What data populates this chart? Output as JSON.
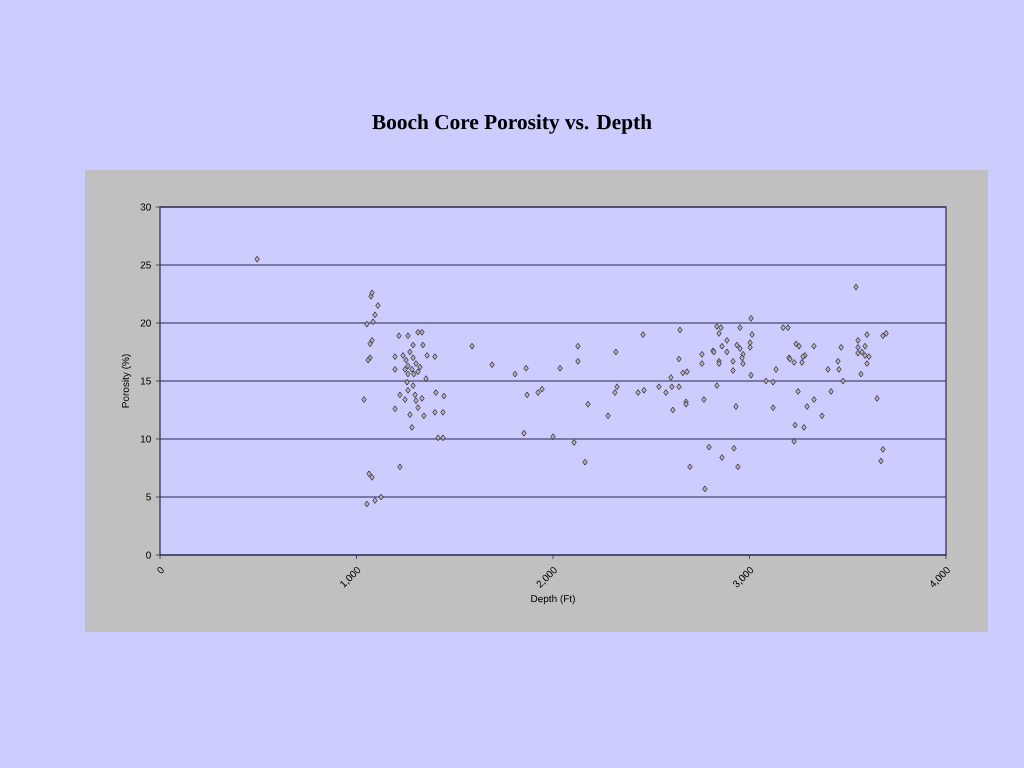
{
  "chart_data": {
    "type": "scatter",
    "title": "Booch Core Porosity vs. Depth",
    "xlabel": "Depth (Ft)",
    "ylabel": "Porosity (%)",
    "xlim": [
      0,
      4000
    ],
    "ylim": [
      0,
      30
    ],
    "xticks": [
      0,
      {
        "value": 1000,
        "label": "1,000"
      },
      {
        "value": 2000,
        "label": "2,000"
      },
      {
        "value": 3000,
        "label": "3,000"
      },
      {
        "value": 4000,
        "label": "4,000"
      }
    ],
    "yticks": [
      0,
      5,
      10,
      15,
      20,
      25,
      30
    ],
    "grid": "y",
    "marker": "diamond",
    "series": [
      {
        "color": "#b8b09a",
        "x": [
          494,
          1038,
          1053,
          1069,
          1079,
          1069,
          1059,
          1074,
          1079,
          1084,
          1094,
          1109,
          1064,
          1079,
          1053,
          1094,
          1125,
          1313,
          1333,
          1216,
          1262,
          1338,
          1288,
          1359,
          1399,
          1196,
          1196,
          1354,
          1404,
          1445,
          1333,
          1196,
          1272,
          1343,
          1399,
          1440,
          1282,
          1415,
          1440,
          1221,
          1237,
          1252,
          1262,
          1272,
          1282,
          1292,
          1262,
          1303,
          1313,
          1323,
          1247,
          1288,
          1262,
          1288,
          1221,
          1298,
          1247,
          1313,
          1303,
          1257,
          1588,
          1690,
          1807,
          1863,
          2036,
          2127,
          2127,
          2320,
          2458,
          1868,
          1924,
          1944,
          2178,
          2280,
          2315,
          2326,
          1852,
          2000,
          2107,
          2163,
          2433,
          2463,
          2539,
          2575,
          2605,
          2641,
          2600,
          2610,
          2677,
          2677,
          2641,
          2661,
          2682,
          2758,
          2758,
          2814,
          2768,
          2794,
          2697,
          2646,
          3008,
          2834,
          2855,
          2845,
          2952,
          3171,
          3196,
          3013,
          2885,
          2860,
          2936,
          3003,
          3003,
          2819,
          2885,
          2952,
          2967,
          2962,
          2845,
          2845,
          2916,
          2967,
          2916,
          3008,
          3135,
          3084,
          3120,
          2834,
          3247,
          2931,
          3120,
          3232,
          3227,
          2921,
          2860,
          2941,
          2773,
          3201,
          3227,
          3542,
          3598,
          3679,
          3695,
          3237,
          3252,
          3328,
          3466,
          3552,
          3552,
          3588,
          3552,
          3572,
          3588,
          3608,
          3282,
          3272,
          3206,
          3267,
          3450,
          3598,
          3399,
          3455,
          3567,
          3476,
          3415,
          3649,
          3328,
          3293,
          3369,
          3277,
          3679,
          3669
        ],
        "values": [
          25.5,
          13.4,
          19.9,
          18.2,
          18.5,
          17.0,
          16.8,
          22.3,
          22.6,
          20.1,
          20.7,
          21.5,
          7.0,
          6.7,
          4.4,
          4.7,
          5.0,
          19.2,
          19.2,
          18.9,
          18.9,
          18.1,
          18.1,
          17.2,
          17.1,
          17.1,
          16.0,
          15.2,
          14.0,
          13.7,
          13.5,
          12.6,
          12.1,
          12.0,
          12.3,
          12.3,
          11.0,
          10.1,
          10.1,
          7.6,
          17.2,
          16.8,
          16.3,
          17.5,
          16.0,
          15.6,
          15.6,
          16.5,
          15.8,
          16.2,
          16.0,
          17.0,
          14.2,
          14.6,
          13.8,
          13.8,
          13.4,
          12.7,
          13.3,
          14.9,
          18.0,
          16.4,
          15.6,
          16.1,
          16.1,
          18.0,
          16.7,
          17.5,
          19.0,
          13.8,
          14.0,
          14.3,
          13.0,
          12.0,
          14.0,
          14.5,
          10.5,
          10.2,
          9.7,
          8.0,
          14.0,
          14.2,
          14.5,
          14.0,
          14.5,
          14.5,
          15.3,
          12.5,
          13.2,
          13.0,
          16.9,
          15.7,
          15.8,
          17.3,
          16.5,
          17.6,
          13.4,
          9.3,
          7.6,
          19.4,
          20.4,
          19.7,
          19.6,
          19.1,
          19.6,
          19.6,
          19.6,
          19.0,
          18.5,
          18.0,
          18.1,
          18.3,
          17.9,
          17.5,
          17.5,
          17.8,
          17.3,
          17.0,
          16.7,
          16.5,
          16.7,
          16.5,
          15.9,
          15.5,
          16.0,
          15.0,
          14.9,
          14.6,
          14.1,
          12.8,
          12.7,
          11.2,
          9.8,
          9.2,
          8.4,
          7.6,
          5.7,
          17.0,
          16.6,
          23.1,
          19.0,
          18.9,
          19.1,
          18.2,
          18.0,
          18.0,
          17.9,
          18.5,
          17.9,
          18.0,
          17.4,
          17.5,
          17.2,
          17.1,
          17.2,
          17.1,
          16.9,
          16.6,
          16.7,
          16.5,
          16.0,
          16.0,
          15.6,
          15.0,
          14.1,
          13.5,
          13.4,
          12.8,
          12.0,
          11.0,
          9.1,
          8.1
        ]
      }
    ]
  }
}
